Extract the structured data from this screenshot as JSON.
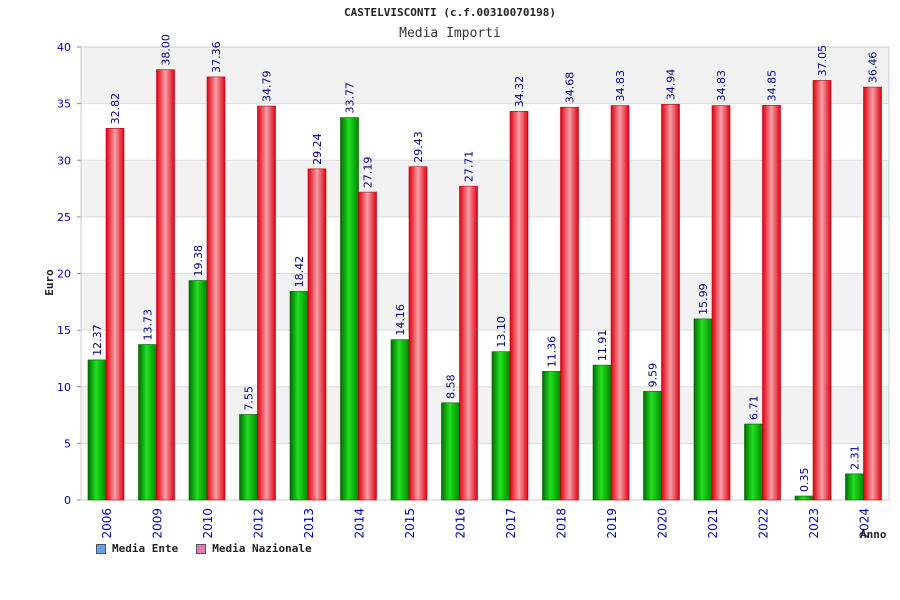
{
  "header": {
    "title": "CASTELVISCONTI (c.f.00310070198)",
    "subtitle": "Media Importi"
  },
  "legend": {
    "items": [
      {
        "label": "Media Ente",
        "color": "#66a3e6"
      },
      {
        "label": "Media Nazionale",
        "color": "#e07ab8"
      }
    ]
  },
  "chart_data": {
    "type": "bar",
    "title": "CASTELVISCONTI (c.f.00310070198)",
    "subtitle": "Media Importi",
    "xlabel": "Anno",
    "ylabel": "Euro",
    "ylim": [
      0,
      40
    ],
    "yticks": [
      0,
      5,
      10,
      15,
      20,
      25,
      30,
      35,
      40
    ],
    "grid": true,
    "legend_position": "bottom-left",
    "categories": [
      "2006",
      "2009",
      "2010",
      "2012",
      "2013",
      "2014",
      "2015",
      "2016",
      "2017",
      "2018",
      "2019",
      "2020",
      "2021",
      "2022",
      "2023",
      "2024"
    ],
    "series": [
      {
        "name": "Media Ente",
        "color": "#00a000",
        "values": [
          12.37,
          13.73,
          19.38,
          7.55,
          18.42,
          33.77,
          14.16,
          8.58,
          13.1,
          11.36,
          11.91,
          9.59,
          15.99,
          6.71,
          0.35,
          2.31
        ],
        "labels": [
          "12.37",
          "13.73",
          "19.38",
          "7.55",
          "18.42",
          "33.77",
          "14.16",
          "8.58",
          "13.10",
          "11.36",
          "11.91",
          "9.59",
          "15.99",
          "6.71",
          "0.35",
          "2.31"
        ]
      },
      {
        "name": "Media Nazionale",
        "color": "#e81020",
        "values": [
          32.82,
          38.0,
          37.36,
          34.79,
          29.24,
          27.19,
          29.43,
          27.71,
          34.32,
          34.68,
          34.83,
          34.94,
          34.83,
          34.85,
          37.05,
          36.46
        ],
        "labels": [
          "32.82",
          "38.00",
          "37.36",
          "34.79",
          "29.24",
          "27.19",
          "29.43",
          "27.71",
          "34.32",
          "34.68",
          "34.83",
          "34.94",
          "34.83",
          "34.85",
          "37.05",
          "36.46"
        ]
      }
    ]
  }
}
